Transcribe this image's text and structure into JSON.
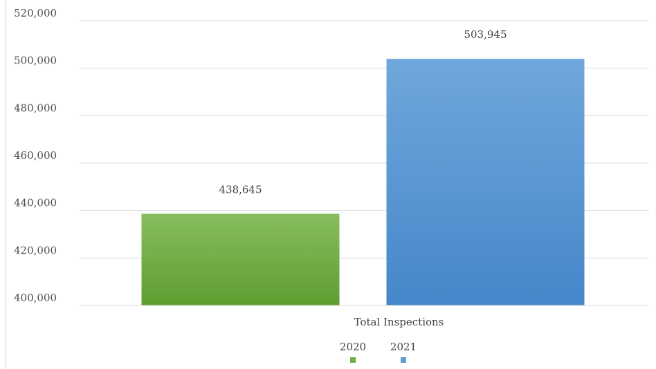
{
  "chart_data": {
    "type": "bar",
    "categories": [
      "Total Inspections"
    ],
    "series": [
      {
        "name": "2020",
        "values": [
          438645
        ],
        "value_label": "438,645",
        "color": "#70ad47"
      },
      {
        "name": "2021",
        "values": [
          503945
        ],
        "value_label": "503,945",
        "color": "#5b9bd5"
      }
    ],
    "ylim": [
      400000,
      520000
    ],
    "yticks": [
      {
        "value": 400000,
        "label": "400,000"
      },
      {
        "value": 420000,
        "label": "420,000"
      },
      {
        "value": 440000,
        "label": "440,000"
      },
      {
        "value": 460000,
        "label": "460,000"
      },
      {
        "value": 480000,
        "label": "480,000"
      },
      {
        "value": 500000,
        "label": "500,000"
      },
      {
        "value": 520000,
        "label": "520,000"
      }
    ],
    "grid": true,
    "legend": "bottom-center"
  }
}
